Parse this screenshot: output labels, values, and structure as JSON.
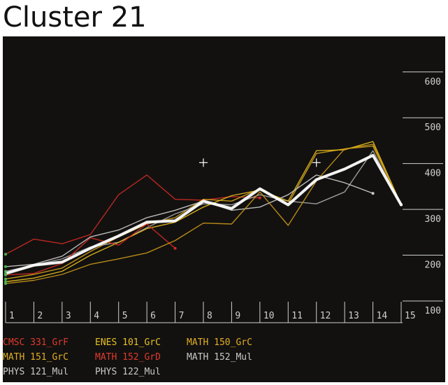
{
  "title": "Cluster 21",
  "chart_data": {
    "type": "line",
    "title": "Cluster 21",
    "x": [
      1,
      2,
      3,
      4,
      5,
      6,
      7,
      8,
      9,
      10,
      11,
      12,
      13,
      14,
      15
    ],
    "xlim": [
      1,
      15
    ],
    "ylim": [
      100,
      650
    ],
    "yticks": [
      100,
      200,
      300,
      400,
      500,
      600
    ],
    "grid": false,
    "legend_position": "bottom",
    "series": [
      {
        "name": "CMSC 331_GrF",
        "color": "#cc2a22",
        "values": [
          202,
          235,
          225,
          245,
          332,
          375,
          322,
          320,
          328,
          325,
          null,
          null,
          null,
          null,
          null
        ]
      },
      {
        "name": "MATH 151_GrC",
        "color": "#d4a41a",
        "values": [
          148,
          158,
          172,
          208,
          240,
          268,
          282,
          322,
          318,
          345,
          312,
          422,
          432,
          442,
          310
        ]
      },
      {
        "name": "PHYS 121_Mul",
        "color": "#aaaaaa",
        "values": [
          165,
          178,
          192,
          218,
          228,
          260,
          290,
          312,
          310,
          332,
          318,
          312,
          338,
          428,
          310
        ]
      },
      {
        "name": "ENES 101_GrC",
        "color": "#e8bc1e",
        "values": [
          142,
          150,
          165,
          200,
          228,
          258,
          272,
          305,
          330,
          342,
          318,
          428,
          430,
          448,
          310
        ]
      },
      {
        "name": "MATH 152_GrD",
        "color": "#d02a20",
        "values": [
          157,
          160,
          182,
          238,
          222,
          268,
          215,
          null,
          null,
          null,
          null,
          null,
          null,
          null,
          null
        ]
      },
      {
        "name": "PHYS 122_Mul",
        "color": "#cccccc",
        "values": [
          175,
          180,
          198,
          240,
          255,
          282,
          298,
          318,
          298,
          305,
          332,
          375,
          358,
          335,
          null
        ]
      },
      {
        "name": "MATH 150_GrC",
        "color": "#c9971a",
        "values": [
          138,
          145,
          158,
          180,
          192,
          205,
          232,
          270,
          268,
          338,
          265,
          362,
          432,
          438,
          310
        ]
      },
      {
        "name": "MATH 152_Mul",
        "color": "#ffffff",
        "values": [
          160,
          178,
          185,
          215,
          242,
          272,
          275,
          318,
          302,
          345,
          310,
          365,
          388,
          418,
          310
        ]
      }
    ],
    "markers": [
      {
        "x": 8,
        "y": 402,
        "symbol": "+"
      },
      {
        "x": 12,
        "y": 402,
        "symbol": "+"
      }
    ]
  },
  "legend": [
    {
      "label": "CMSC 331_GrF",
      "color": "#e03a2c"
    },
    {
      "label": "MATH 151_GrC",
      "color": "#e2ad22"
    },
    {
      "label": "PHYS 121_Mul",
      "color": "#c8c8c8"
    },
    {
      "label": "ENES 101_GrC",
      "color": "#e8c022"
    },
    {
      "label": "MATH 152_GrD",
      "color": "#e03a2c"
    },
    {
      "label": "PHYS 122_Mul",
      "color": "#c8c8c8"
    },
    {
      "label": "MATH 150_GrC",
      "color": "#e2ad22"
    },
    {
      "label": "MATH 152_Mul",
      "color": "#c8c8c8"
    }
  ],
  "axis_color": "#d0d0d0"
}
